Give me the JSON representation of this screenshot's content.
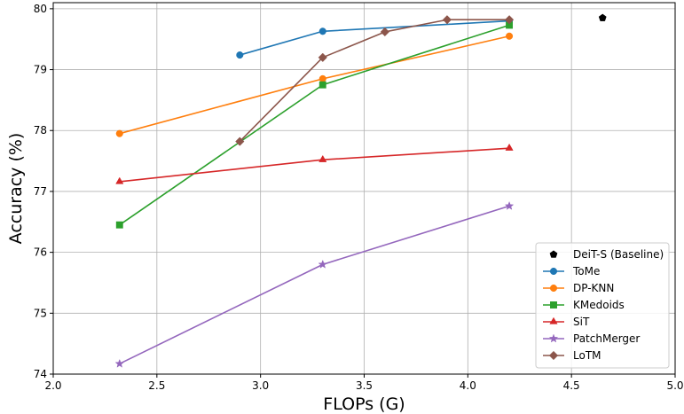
{
  "chart_data": {
    "type": "line",
    "xlabel": "FLOPs (G)",
    "ylabel": "Accuracy (%)",
    "xlim": [
      2.0,
      5.0
    ],
    "ylim": [
      74,
      80.1
    ],
    "xticks": [
      2.0,
      2.5,
      3.0,
      3.5,
      4.0,
      4.5,
      5.0
    ],
    "xtick_labels": [
      "2.0",
      "2.5",
      "3.0",
      "3.5",
      "4.0",
      "4.5",
      "5.0"
    ],
    "yticks": [
      74,
      75,
      76,
      77,
      78,
      79,
      80
    ],
    "ytick_labels": [
      "74",
      "75",
      "76",
      "77",
      "78",
      "79",
      "80"
    ],
    "grid": true,
    "legend_position": "lower-right",
    "series": [
      {
        "name": "DeiT-S (Baseline)",
        "color": "#000000",
        "marker": "pentagon",
        "line": false,
        "x": [
          4.65
        ],
        "y": [
          79.85
        ]
      },
      {
        "name": "ToMe",
        "color": "#1f77b4",
        "marker": "circle",
        "line": true,
        "x": [
          2.9,
          3.3,
          4.2
        ],
        "y": [
          79.24,
          79.63,
          79.8
        ]
      },
      {
        "name": "DP-KNN",
        "color": "#ff7f0e",
        "marker": "circle",
        "line": true,
        "x": [
          2.32,
          3.3,
          4.2
        ],
        "y": [
          77.95,
          78.85,
          79.55
        ]
      },
      {
        "name": "KMedoids",
        "color": "#2ca02c",
        "marker": "square",
        "line": true,
        "x": [
          2.32,
          3.3,
          4.2
        ],
        "y": [
          76.45,
          78.75,
          79.73
        ]
      },
      {
        "name": "SiT",
        "color": "#d62728",
        "marker": "triangle",
        "line": true,
        "x": [
          2.32,
          3.3,
          4.2
        ],
        "y": [
          77.16,
          77.52,
          77.71
        ]
      },
      {
        "name": "PatchMerger",
        "color": "#9467bd",
        "marker": "star",
        "line": true,
        "x": [
          2.32,
          3.3,
          4.2
        ],
        "y": [
          74.17,
          75.8,
          76.76
        ]
      },
      {
        "name": "LoTM",
        "color": "#8c564b",
        "marker": "diamond",
        "line": true,
        "x": [
          2.9,
          3.3,
          3.6,
          3.9,
          4.2
        ],
        "y": [
          77.82,
          79.2,
          79.62,
          79.82,
          79.82
        ]
      }
    ]
  }
}
